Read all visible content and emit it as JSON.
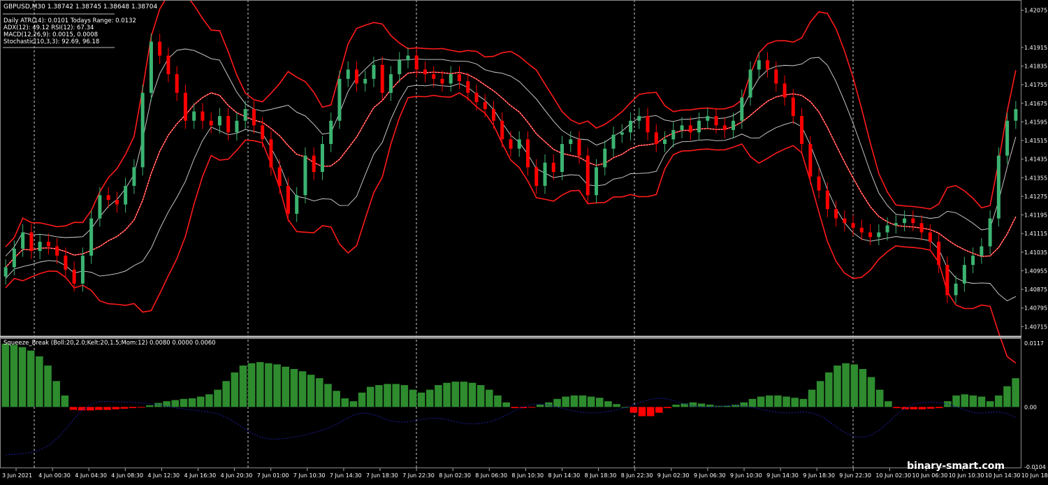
{
  "symbol_header": "GBPUSD,M30  1.38742 1.38745 1.38648 1.38704",
  "info_lines": [
    "Daily ATR(14): 0.0101 Todays Range: 0.0132",
    "ADX(12): 49.12 RSI(12): 67.34",
    "MACD(12,26,9): 0.0015, 0.0008",
    "Stochastic(10,3,3): 92.69, 96.18"
  ],
  "indicator_label": "Squeeze_Break (Boll:20,2.0;Kelt:20,1.5;Mom:12) 0.0080 0.0000 0.0060",
  "watermark": "binary-smart.com",
  "colors": {
    "background": "#000000",
    "up_candle": "#3cb371",
    "down_candle": "#ff0000",
    "bollinger": "#ff1a1a",
    "keltner": "#d8d8d8",
    "midline": "#ffffff",
    "hist_up": "#2e8b2e",
    "hist_down": "#ff0000",
    "momentum_line": "#1a1a8c",
    "grid": "#cfcfcf",
    "separator": "#c0c0c0"
  },
  "chart_data": [
    {
      "type": "candlestick",
      "title": "GBPUSD,M30",
      "price_axis_ticks": [
        "1.42075",
        "1.41915",
        "1.41835",
        "1.41755",
        "1.41675",
        "1.41595",
        "1.41515",
        "1.41435",
        "1.41355",
        "1.41275",
        "1.41195",
        "1.41115",
        "1.41035",
        "1.40955",
        "1.40875",
        "1.40795",
        "1.40715"
      ],
      "x_tick_labels": [
        "3 Jun 2021",
        "4 Jun 00:30",
        "4 Jun 04:30",
        "4 Jun 08:30",
        "4 Jun 12:30",
        "4 Jun 16:30",
        "4 Jun 20:30",
        "7 Jun 01:00",
        "7 Jun 10:30",
        "7 Jun 14:30",
        "7 Jun 18:30",
        "7 Jun 22:30",
        "8 Jun 02:30",
        "8 Jun 06:30",
        "8 Jun 10:30",
        "8 Jun 14:30",
        "8 Jun 18:30",
        "8 Jun 22:30",
        "9 Jun 02:30",
        "9 Jun 06:30",
        "9 Jun 10:30",
        "9 Jun 14:30",
        "9 Jun 18:30",
        "9 Jun 22:30",
        "10 Jun 02:30",
        "10 Jun 06:30",
        "10 Jun 10:30",
        "10 Jun 14:30",
        "10 Jun 18:3"
      ],
      "ylim": [
        1.4068,
        1.4211
      ],
      "close_path": [
        1.4097,
        1.4105,
        1.4112,
        1.4104,
        1.4108,
        1.4106,
        1.4102,
        1.4096,
        1.409,
        1.4102,
        1.4118,
        1.4128,
        1.4126,
        1.4124,
        1.4132,
        1.414,
        1.4172,
        1.4194,
        1.4188,
        1.418,
        1.4172,
        1.416,
        1.4164,
        1.416,
        1.4158,
        1.4162,
        1.4155,
        1.416,
        1.4165,
        1.4158,
        1.4152,
        1.414,
        1.4132,
        1.412,
        1.4128,
        1.4145,
        1.4138,
        1.415,
        1.416,
        1.4178,
        1.4182,
        1.4176,
        1.4178,
        1.4184,
        1.4172,
        1.418,
        1.4186,
        1.4188,
        1.4182,
        1.418,
        1.4178,
        1.4176,
        1.418,
        1.4177,
        1.4172,
        1.4168,
        1.4165,
        1.416,
        1.4152,
        1.4148,
        1.4152,
        1.414,
        1.4132,
        1.4142,
        1.4138,
        1.415,
        1.4152,
        1.4145,
        1.4128,
        1.414,
        1.4148,
        1.4154,
        1.4155,
        1.416,
        1.4162,
        1.4155,
        1.415,
        1.4152,
        1.4156,
        1.4158,
        1.4155,
        1.416,
        1.4162,
        1.4158,
        1.4156,
        1.416,
        1.417,
        1.4182,
        1.4186,
        1.4182,
        1.4176,
        1.417,
        1.4162,
        1.415,
        1.4136,
        1.413,
        1.4122,
        1.4118,
        1.4116,
        1.4114,
        1.4112,
        1.411,
        1.4112,
        1.4115,
        1.4116,
        1.4118,
        1.4116,
        1.4112,
        1.4108,
        1.4098,
        1.4085,
        1.409,
        1.4098,
        1.4102,
        1.4106,
        1.4118,
        1.4145,
        1.416,
        1.4165
      ]
    },
    {
      "type": "bar",
      "title": "Squeeze_Break",
      "ylim": [
        -0.0104,
        0.0117
      ],
      "y_tick_labels": [
        "0.0117",
        "0.00",
        "-0.0104"
      ],
      "series_note_histogram_momentum": true,
      "histogram": [
        0.011,
        0.0108,
        0.0104,
        0.0098,
        0.0088,
        0.0072,
        0.0045,
        0.002,
        -0.0005,
        -0.0006,
        -0.0006,
        -0.0005,
        -0.0005,
        -0.0004,
        -0.0003,
        -0.0002,
        -0.0001,
        0.0003,
        0.0007,
        0.001,
        0.0012,
        0.0014,
        0.0015,
        0.0018,
        0.0022,
        0.003,
        0.0045,
        0.006,
        0.0072,
        0.0076,
        0.0078,
        0.0076,
        0.0074,
        0.007,
        0.0066,
        0.0062,
        0.0056,
        0.005,
        0.004,
        0.0028,
        0.0015,
        0.001,
        0.0025,
        0.0035,
        0.0038,
        0.004,
        0.004,
        0.0038,
        0.003,
        0.0025,
        0.003,
        0.0038,
        0.0042,
        0.0044,
        0.0044,
        0.0042,
        0.0038,
        0.003,
        0.002,
        0.0008,
        -0.0002,
        -0.0002,
        -0.0001,
        0.0004,
        0.0008,
        0.0014,
        0.0018,
        0.002,
        0.002,
        0.0018,
        0.0016,
        0.001,
        0.0005,
        0.0,
        -0.001,
        -0.0016,
        -0.0016,
        -0.001,
        -0.0002,
        0.0004,
        0.0006,
        0.0008,
        0.0006,
        0.0004,
        0.0002,
        0.0002,
        0.0004,
        0.0008,
        0.0014,
        0.0018,
        0.002,
        0.002,
        0.0018,
        0.0016,
        0.0014,
        0.003,
        0.0045,
        0.006,
        0.0072,
        0.0076,
        0.0074,
        0.0066,
        0.0052,
        0.003,
        0.001,
        -0.0002,
        -0.0004,
        -0.0004,
        -0.0004,
        -0.0003,
        -0.0002,
        0.001,
        0.002,
        0.0022,
        0.002,
        0.0018,
        0.001,
        0.002,
        0.0036,
        0.005
      ]
    }
  ]
}
